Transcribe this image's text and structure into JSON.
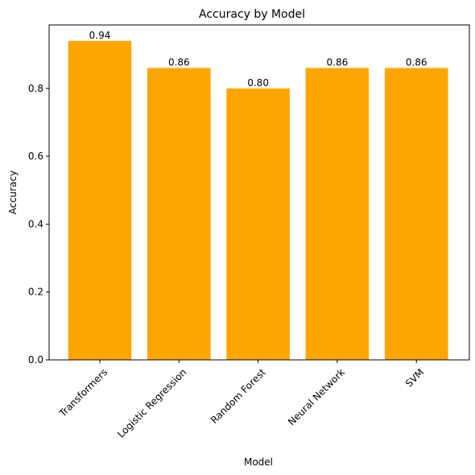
{
  "chart_data": {
    "type": "bar",
    "title": "Accuracy by Model",
    "xlabel": "Model",
    "ylabel": "Accuracy",
    "categories": [
      "Transformers",
      "Logistic Regression",
      "Random Forest",
      "Neural Network",
      "SVM"
    ],
    "values": [
      0.94,
      0.86,
      0.8,
      0.86,
      0.86
    ],
    "data_labels": [
      "0.94",
      "0.86",
      "0.80",
      "0.86",
      "0.86"
    ],
    "ylim": [
      0,
      0.987
    ],
    "yticks": [
      0.0,
      0.2,
      0.4,
      0.6,
      0.8
    ],
    "ytick_labels": [
      "0.0",
      "0.2",
      "0.4",
      "0.6",
      "0.8"
    ],
    "bar_color": "#ffa500",
    "grid": false,
    "legend": "none"
  }
}
